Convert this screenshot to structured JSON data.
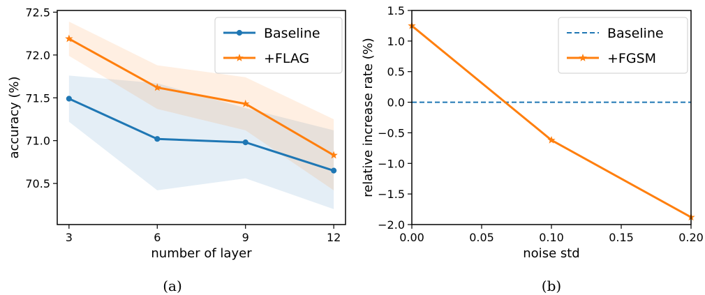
{
  "chart_data": [
    {
      "type": "line",
      "xlabel": "number of layer",
      "ylabel": "accuracy (%)",
      "caption": "(a)",
      "xlim": [
        2.6,
        12.4
      ],
      "ylim": [
        70.02,
        72.52
      ],
      "xticks": [
        3,
        6,
        9,
        12
      ],
      "xtick_labels": [
        "3",
        "6",
        "9",
        "12"
      ],
      "yticks": [
        70.5,
        71.0,
        71.5,
        72.0,
        72.5
      ],
      "ytick_labels": [
        "70.5",
        "71.0",
        "71.5",
        "72.0",
        "72.5"
      ],
      "grid": false,
      "legend_position": "top-right",
      "x": [
        3,
        6,
        9,
        12
      ],
      "series": [
        {
          "name": "Baseline",
          "color": "#1f77b4",
          "marker": "circle",
          "values": [
            71.49,
            71.02,
            70.98,
            70.65
          ],
          "band_lower": [
            71.22,
            70.42,
            70.56,
            70.2
          ],
          "band_upper": [
            71.76,
            71.67,
            71.38,
            71.12
          ]
        },
        {
          "name": "+FLAG",
          "color": "#ff7f0e",
          "marker": "star",
          "values": [
            72.19,
            71.62,
            71.43,
            70.83
          ],
          "band_lower": [
            71.99,
            71.37,
            71.12,
            70.42
          ],
          "band_upper": [
            72.39,
            71.88,
            71.74,
            71.25
          ]
        }
      ]
    },
    {
      "type": "line",
      "xlabel": "noise std",
      "ylabel": "relative increase rate (%)",
      "caption": "(b)",
      "xlim": [
        0.0,
        0.2
      ],
      "ylim": [
        -2.0,
        1.5
      ],
      "xticks": [
        0.0,
        0.05,
        0.1,
        0.15,
        0.2
      ],
      "xtick_labels": [
        "0.00",
        "0.05",
        "0.10",
        "0.15",
        "0.20"
      ],
      "yticks": [
        -2.0,
        -1.5,
        -1.0,
        -0.5,
        0.0,
        0.5,
        1.0,
        1.5
      ],
      "ytick_labels": [
        "−2.0",
        "−1.5",
        "−1.0",
        "−0.5",
        "0.0",
        "0.5",
        "1.0",
        "1.5"
      ],
      "grid": false,
      "legend_position": "top-right",
      "series": [
        {
          "name": "Baseline",
          "color": "#1f77b4",
          "style": "dashed",
          "x": [
            0.0,
            0.2
          ],
          "values": [
            0.0,
            0.0
          ]
        },
        {
          "name": "+FGSM",
          "color": "#ff7f0e",
          "marker": "star",
          "x": [
            0.0,
            0.1,
            0.2
          ],
          "values": [
            1.25,
            -0.62,
            -1.88
          ]
        }
      ]
    }
  ]
}
